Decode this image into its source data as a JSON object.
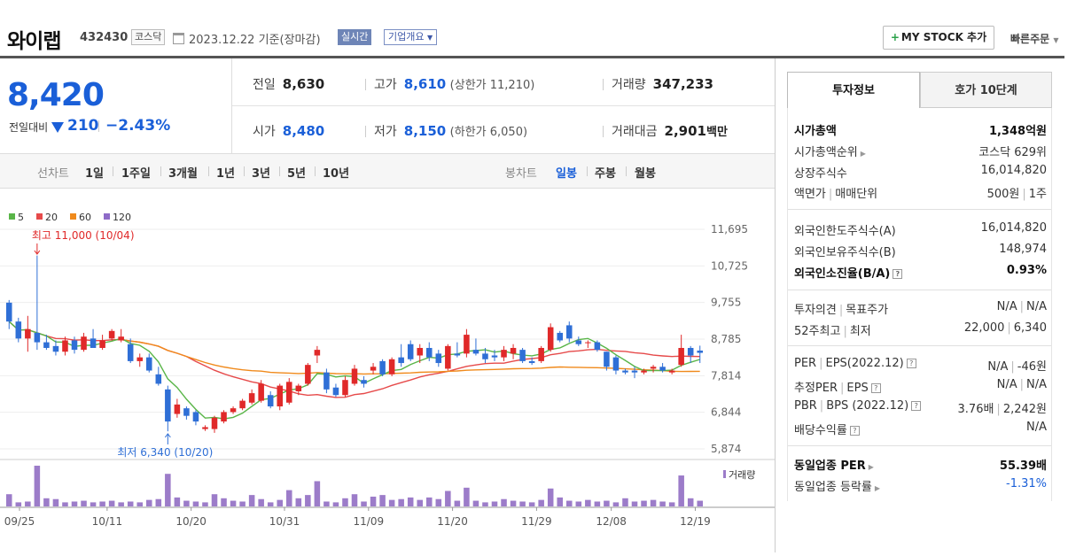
{
  "header": {
    "name": "와이랩",
    "code": "432430",
    "market": "코스닥",
    "date": "2023.12.22",
    "date_suffix": "기준(장마감)",
    "realtime": "실시간",
    "overview": "기업개요",
    "mystock": "MY STOCK 추가",
    "quick_order": "빠른주문"
  },
  "price": {
    "current": "8,420",
    "change_label": "전일대비",
    "change_amount": "210",
    "change_pct": "−2.43%"
  },
  "quotes": {
    "prev_label": "전일",
    "prev": "8,630",
    "high_label": "고가",
    "high": "8,610",
    "upper_limit": "(상한가 11,210)",
    "volume_label": "거래량",
    "volume": "347,233",
    "open_label": "시가",
    "open": "8,480",
    "low_label": "저가",
    "low": "8,150",
    "lower_limit": "(하한가 6,050)",
    "amount_label": "거래대금",
    "amount": "2,901",
    "amount_unit": "백만"
  },
  "toolbar": {
    "line_label": "선차트",
    "line_periods": [
      "1일",
      "1주일",
      "3개월",
      "1년",
      "3년",
      "5년",
      "10년"
    ],
    "candle_label": "봉차트",
    "candle_periods": [
      "일봉",
      "주봉",
      "월봉"
    ]
  },
  "chart_data": {
    "type": "candlestick",
    "legend": [
      {
        "name": "5",
        "color": "#59b548"
      },
      {
        "name": "20",
        "color": "#e64a4a"
      },
      {
        "name": "60",
        "color": "#f08a1c"
      },
      {
        "name": "120",
        "color": "#8e6bc8"
      }
    ],
    "y_ticks": [
      "11,695",
      "10,725",
      "9,755",
      "8,785",
      "7,814",
      "6,844",
      "5,874"
    ],
    "ylim": [
      5874,
      11695
    ],
    "x_ticks": [
      "09/25",
      "10/11",
      "10/20",
      "10/31",
      "11/09",
      "11/20",
      "11/29",
      "12/08",
      "12/19"
    ],
    "annotations": {
      "high": "최고 11,000 (10/04)",
      "low": "최저 6,340 (10/20)"
    },
    "volume_label": "거래량",
    "candles": [
      [
        9750,
        9820,
        9050,
        9250
      ],
      [
        9250,
        9350,
        8700,
        8800
      ],
      [
        8800,
        9400,
        8450,
        9050
      ],
      [
        8950,
        11000,
        8500,
        8700
      ],
      [
        8700,
        8900,
        8500,
        8550
      ],
      [
        8600,
        8750,
        8350,
        8450
      ],
      [
        8450,
        8850,
        8350,
        8750
      ],
      [
        8750,
        8850,
        8400,
        8500
      ],
      [
        8500,
        8950,
        8450,
        8850
      ],
      [
        8800,
        9050,
        8600,
        8550
      ],
      [
        8550,
        8900,
        8500,
        8750
      ],
      [
        8800,
        9050,
        8750,
        9000
      ],
      [
        8750,
        9050,
        8700,
        8850
      ],
      [
        8650,
        8800,
        8150,
        8200
      ],
      [
        8200,
        8400,
        8050,
        8300
      ],
      [
        8300,
        8400,
        7900,
        7950
      ],
      [
        7850,
        8050,
        7550,
        7600
      ],
      [
        7450,
        7550,
        6340,
        6600
      ],
      [
        6800,
        7200,
        6700,
        7050
      ],
      [
        6950,
        7000,
        6650,
        6750
      ],
      [
        6850,
        6900,
        6500,
        6600
      ],
      [
        6400,
        6500,
        6350,
        6450
      ],
      [
        6400,
        6750,
        6300,
        6700
      ],
      [
        6600,
        6900,
        6550,
        6850
      ],
      [
        6850,
        7000,
        6800,
        6950
      ],
      [
        6950,
        7200,
        6900,
        7150
      ],
      [
        7100,
        7450,
        7050,
        7350
      ],
      [
        7150,
        7700,
        7100,
        7600
      ],
      [
        7300,
        7400,
        6950,
        7000
      ],
      [
        7000,
        7600,
        6900,
        7550
      ],
      [
        7100,
        7750,
        7050,
        7650
      ],
      [
        7400,
        7600,
        7300,
        7550
      ],
      [
        7600,
        8150,
        7550,
        8100
      ],
      [
        8350,
        8600,
        8150,
        8500
      ],
      [
        7900,
        8000,
        7350,
        7450
      ],
      [
        7500,
        7600,
        7250,
        7300
      ],
      [
        7300,
        7800,
        7250,
        7700
      ],
      [
        7600,
        8100,
        7550,
        8000
      ],
      [
        7700,
        7800,
        7500,
        7600
      ],
      [
        7950,
        8150,
        7850,
        8050
      ],
      [
        8200,
        8250,
        7800,
        7850
      ],
      [
        7850,
        8300,
        7800,
        8250
      ],
      [
        8300,
        8650,
        8050,
        8150
      ],
      [
        8650,
        8750,
        8200,
        8250
      ],
      [
        8350,
        8650,
        8150,
        8550
      ],
      [
        8550,
        8700,
        8200,
        8300
      ],
      [
        8400,
        8500,
        8050,
        8150
      ],
      [
        8000,
        8650,
        7950,
        8600
      ],
      [
        8400,
        8700,
        8300,
        8350
      ],
      [
        8400,
        9050,
        8300,
        8900
      ],
      [
        8500,
        8800,
        8350,
        8400
      ],
      [
        8400,
        8550,
        8150,
        8250
      ],
      [
        8350,
        8500,
        8200,
        8300
      ],
      [
        8300,
        8600,
        8200,
        8500
      ],
      [
        8400,
        8650,
        8250,
        8550
      ],
      [
        8500,
        8550,
        8150,
        8200
      ],
      [
        8200,
        8300,
        8100,
        8150
      ],
      [
        8200,
        8600,
        8150,
        8550
      ],
      [
        8500,
        9200,
        8450,
        9100
      ],
      [
        8950,
        9000,
        8700,
        8750
      ],
      [
        9150,
        9250,
        8700,
        8800
      ],
      [
        8750,
        8850,
        8600,
        8650
      ],
      [
        8700,
        8750,
        8550,
        8700
      ],
      [
        8700,
        8750,
        8450,
        8500
      ],
      [
        8450,
        8450,
        7950,
        8050
      ],
      [
        8300,
        8350,
        7850,
        7950
      ],
      [
        7950,
        8000,
        7850,
        7900
      ],
      [
        7950,
        8050,
        7750,
        7900
      ],
      [
        7900,
        8000,
        7850,
        7950
      ],
      [
        8000,
        8100,
        7900,
        8050
      ],
      [
        8050,
        8150,
        7900,
        7950
      ],
      [
        7900,
        8000,
        7850,
        7950
      ],
      [
        8100,
        8900,
        8050,
        8550
      ],
      [
        8550,
        8600,
        8150,
        8350
      ],
      [
        8480,
        8610,
        8150,
        8420
      ]
    ],
    "volumes": [
      30,
      10,
      12,
      100,
      20,
      18,
      10,
      12,
      14,
      10,
      12,
      14,
      10,
      12,
      10,
      16,
      18,
      80,
      22,
      14,
      12,
      10,
      30,
      20,
      14,
      12,
      28,
      18,
      10,
      16,
      40,
      20,
      28,
      62,
      12,
      10,
      20,
      30,
      12,
      24,
      28,
      16,
      18,
      22,
      16,
      22,
      18,
      38,
      14,
      46,
      14,
      10,
      12,
      18,
      14,
      12,
      10,
      16,
      44,
      22,
      14,
      12,
      16,
      12,
      14,
      10,
      20,
      12,
      14,
      16,
      12,
      10,
      76,
      20,
      14
    ]
  },
  "sidebar": {
    "tab_invest": "투자정보",
    "tab_hoga": "호가 10단계",
    "rows": {
      "mktcap_k": "시가총액",
      "mktcap_v": "1,348억원",
      "rank_k": "시가총액순위",
      "rank_v": "코스닥 629위",
      "shares_k": "상장주식수",
      "shares_v": "16,014,820",
      "par_k": "액면가",
      "par_k2": "매매단위",
      "par_v": "500원",
      "par_v2": "1주",
      "forlimit_k": "외국인한도주식수(A)",
      "forlimit_v": "16,014,820",
      "forhold_k": "외국인보유주식수(B)",
      "forhold_v": "148,974",
      "forratio_k": "외국인소진율(B/A)",
      "forratio_v": "0.93%",
      "opinion_k": "투자의견",
      "opinion_k2": "목표주가",
      "opinion_v": "N/A",
      "opinion_v2": "N/A",
      "w52_k": "52주최고",
      "w52_k2": "최저",
      "w52_v": "22,000",
      "w52_v2": "6,340",
      "per_k": "PER",
      "per_k2": "EPS(2022.12)",
      "per_v": "N/A",
      "per_v2": "-46원",
      "eper_k": "추정PER",
      "eper_k2": "EPS",
      "eper_v": "N/A",
      "eper_v2": "N/A",
      "pbr_k": "PBR",
      "pbr_k2": "BPS (2022.12)",
      "pbr_v": "3.76배",
      "pbr_v2": "2,242원",
      "div_k": "배당수익률",
      "div_v": "N/A",
      "sector_per_k": "동일업종 PER",
      "sector_per_v": "55.39배",
      "sector_chg_k": "동일업종 등락률",
      "sector_chg_v": "-1.31%"
    }
  }
}
